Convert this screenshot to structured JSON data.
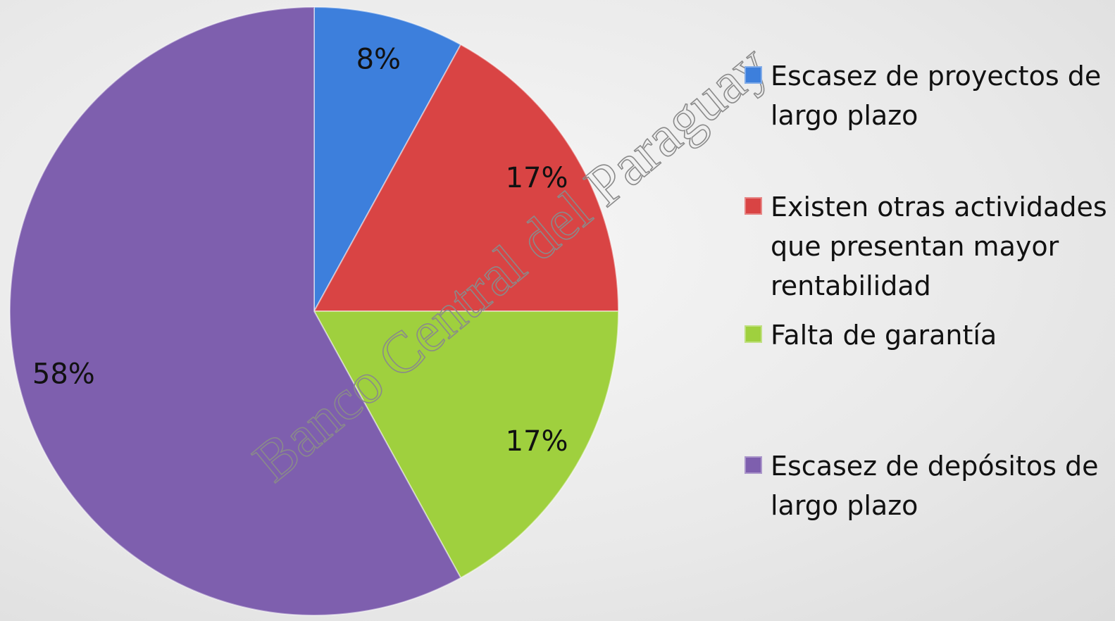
{
  "chart_data": {
    "type": "pie",
    "categories": [
      "Escasez de proyectos de largo plazo",
      "Existen otras actividades que presentan mayor rentabilidad",
      "Falta de garantía",
      "Escasez de depósitos de largo plazo"
    ],
    "values": [
      8,
      17,
      17,
      58
    ],
    "value_labels": [
      "8%",
      "17%",
      "17%",
      "58%"
    ],
    "colors": [
      "#3d7fdc",
      "#d94444",
      "#9fd03e",
      "#7e5fae"
    ],
    "legend": "right",
    "watermark": "Banco Central del Paraguay"
  }
}
